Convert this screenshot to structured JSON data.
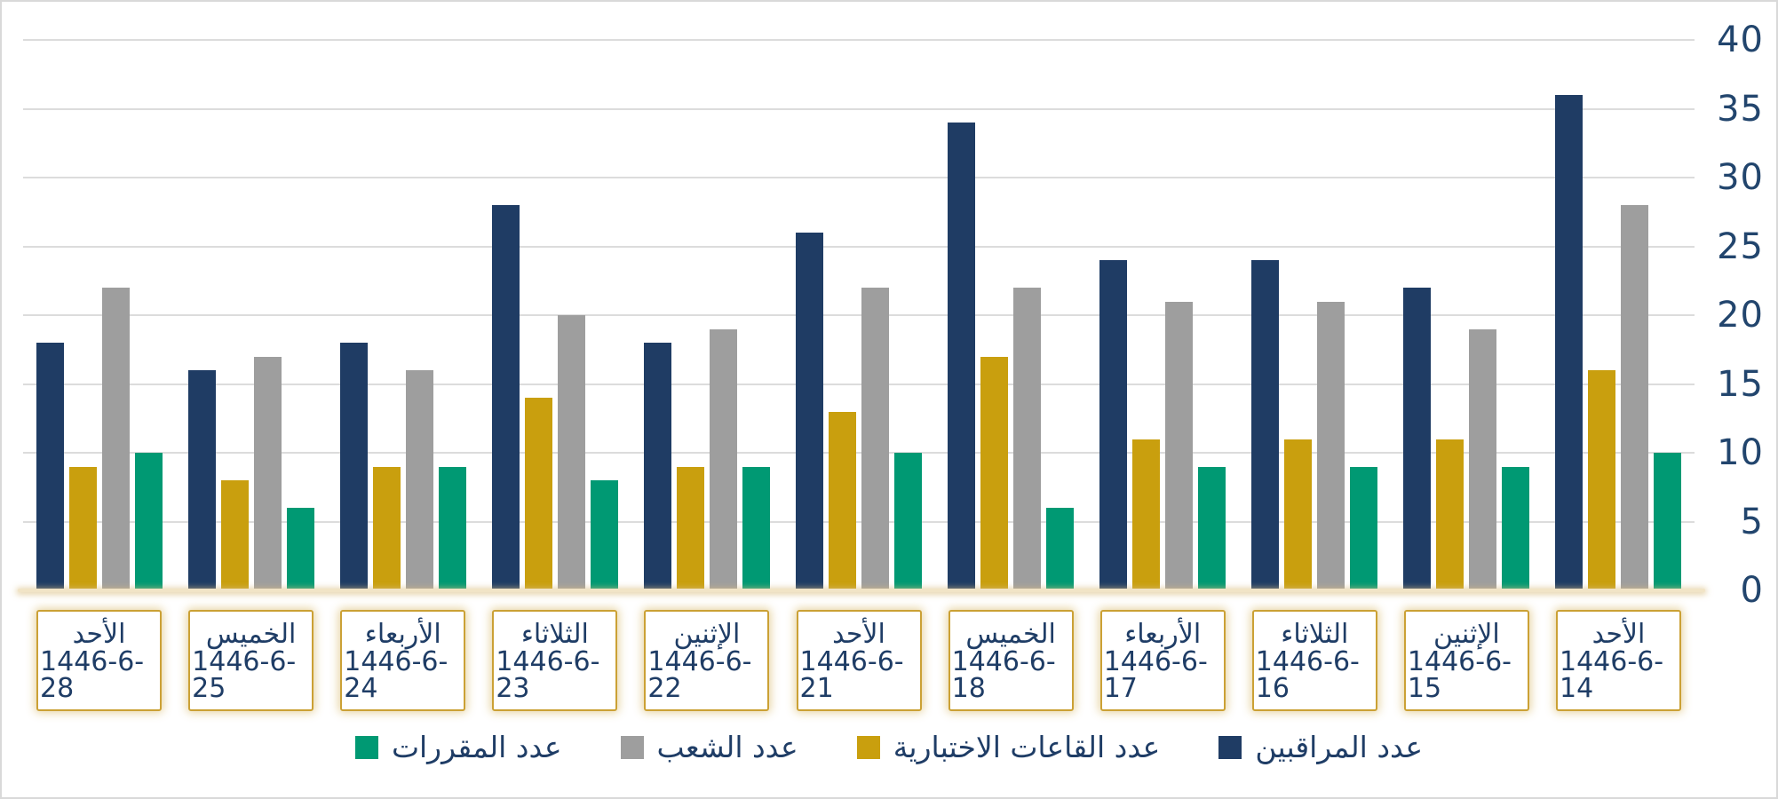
{
  "colors": {
    "background": "#ffffff",
    "frame_border": "#d9d9d9",
    "gridline": "#dcdcdc",
    "baseline": "#f1e4c6",
    "category_box_border": "#cba135",
    "text": "#1f3d66"
  },
  "chart_data": {
    "type": "bar",
    "title": "",
    "orientation": "vertical-grouped",
    "categories": [
      {
        "day": "الأحد",
        "date": "1446-6-28"
      },
      {
        "day": "الخميس",
        "date": "1446-6-25"
      },
      {
        "day": "الأربعاء",
        "date": "1446-6-24"
      },
      {
        "day": "الثلاثاء",
        "date": "1446-6-23"
      },
      {
        "day": "الإثنين",
        "date": "1446-6-22"
      },
      {
        "day": "الأحد",
        "date": "1446-6-21"
      },
      {
        "day": "الخميس",
        "date": "1446-6-18"
      },
      {
        "day": "الأربعاء",
        "date": "1446-6-17"
      },
      {
        "day": "الثلاثاء",
        "date": "1446-6-16"
      },
      {
        "day": "الإثنين",
        "date": "1446-6-15"
      },
      {
        "day": "الأحد",
        "date": "1446-6-14"
      }
    ],
    "series": [
      {
        "key": "supervisors",
        "name": "عدد المراقبين",
        "color": "#1f3c64",
        "values": [
          18,
          16,
          18,
          28,
          18,
          26,
          34,
          24,
          24,
          22,
          36
        ]
      },
      {
        "key": "exam-halls",
        "name": "عدد القاعات الاختبارية",
        "color": "#c99f0e",
        "values": [
          9,
          8,
          9,
          14,
          9,
          13,
          17,
          11,
          11,
          11,
          16
        ]
      },
      {
        "key": "sections",
        "name": "عدد الشعب",
        "color": "#9e9e9e",
        "values": [
          22,
          17,
          16,
          20,
          19,
          22,
          22,
          21,
          21,
          19,
          28
        ]
      },
      {
        "key": "courses",
        "name": "عدد المقررات",
        "color": "#009973",
        "values": [
          10,
          6,
          9,
          8,
          9,
          10,
          6,
          9,
          9,
          9,
          10
        ]
      }
    ],
    "y_axis": {
      "side": "right",
      "min": 0,
      "max": 40,
      "step": 5,
      "tick_labels": [
        "0",
        "5",
        "10",
        "15",
        "20",
        "25",
        "30",
        "35",
        "40"
      ],
      "grid": true
    },
    "legend": {
      "position": "bottom",
      "items": [
        {
          "key": "courses",
          "label": "عدد المقررات",
          "color": "#009973"
        },
        {
          "key": "sections",
          "label": "عدد الشعب",
          "color": "#9e9e9e"
        },
        {
          "key": "exam-halls",
          "label": "عدد القاعات الاختبارية",
          "color": "#c99f0e"
        },
        {
          "key": "supervisors",
          "label": "عدد المراقبين",
          "color": "#1f3c64"
        }
      ]
    }
  }
}
